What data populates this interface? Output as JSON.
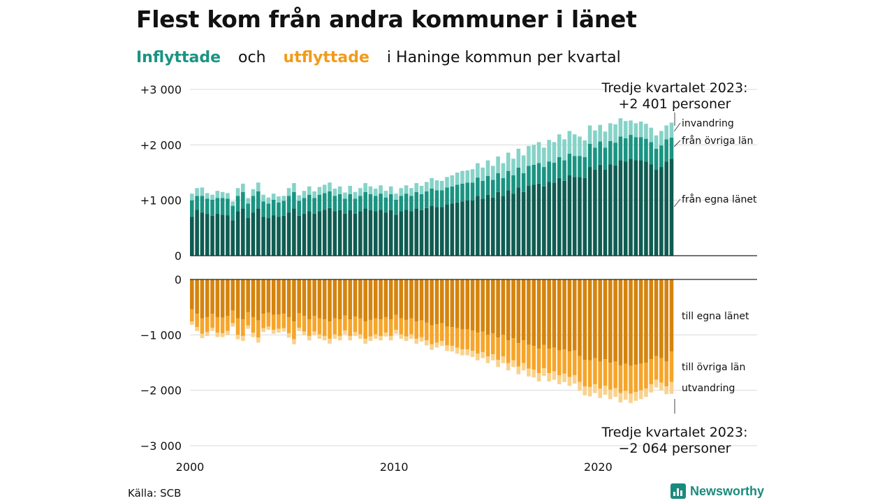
{
  "title": "Flest kom från andra kommuner i länet",
  "subtitle": {
    "inflow": "Inflyttade",
    "and": "och",
    "outflow": "utflyttade",
    "rest": "i Haninge  kommun  per  kvartal"
  },
  "source": "Källa: SCB",
  "brand": "Newsworthy",
  "colors": {
    "in_egna": "#0f5c52",
    "in_ovriga": "#1a9482",
    "in_invandring": "#86d3c8",
    "out_egna": "#d4840e",
    "out_ovriga": "#f6a52a",
    "out_utvandring": "#f9d28e",
    "grid": "#d9d9d9"
  },
  "chart_data": {
    "type": "bar",
    "stacked": true,
    "x_start": "2000 Q1",
    "x_end": "2023 Q3",
    "periods": 95,
    "x_ticks": [
      "2000",
      "2010",
      "2020"
    ],
    "y_ticks_top": [
      "+3 000",
      "+2 000",
      "+1 000",
      "0"
    ],
    "y_ticks_bottom": [
      "0",
      "−1 000",
      "−2 000",
      "−3 000"
    ],
    "ylim_top": [
      0,
      3000
    ],
    "ylim_bottom": [
      -3000,
      0
    ],
    "inflow_series_labels": [
      "invandring",
      "från övriga län",
      "från egna länet"
    ],
    "outflow_series_labels": [
      "till egna länet",
      "till övriga län",
      "utvandring"
    ],
    "annotation_top": [
      "Tredje kvartalet 2023:",
      "+2 401 personer"
    ],
    "annotation_bottom": [
      "Tredje kvartalet 2023:",
      "−2 064 personer"
    ],
    "inflow": {
      "egna": [
        700,
        830,
        780,
        750,
        720,
        760,
        740,
        730,
        640,
        800,
        850,
        680,
        780,
        850,
        700,
        680,
        730,
        700,
        720,
        780,
        850,
        720,
        760,
        800,
        760,
        800,
        830,
        860,
        800,
        820,
        760,
        820,
        760,
        800,
        850,
        820,
        800,
        830,
        780,
        820,
        740,
        800,
        830,
        800,
        850,
        820,
        860,
        900,
        880,
        880,
        920,
        940,
        960,
        980,
        1000,
        1000,
        1080,
        1030,
        1100,
        1050,
        1150,
        1080,
        1180,
        1120,
        1230,
        1150,
        1260,
        1280,
        1300,
        1250,
        1330,
        1320,
        1400,
        1350,
        1450,
        1420,
        1420,
        1400,
        1600,
        1550,
        1640,
        1550,
        1650,
        1630,
        1720,
        1700,
        1750,
        1720,
        1720,
        1700,
        1650,
        1550,
        1600,
        1700,
        1750
      ],
      "ovriga": [
        300,
        250,
        300,
        280,
        290,
        280,
        300,
        300,
        260,
        280,
        300,
        260,
        300,
        310,
        280,
        260,
        280,
        260,
        270,
        300,
        300,
        270,
        280,
        300,
        280,
        300,
        300,
        300,
        280,
        290,
        270,
        290,
        270,
        280,
        300,
        290,
        280,
        290,
        270,
        290,
        270,
        280,
        290,
        280,
        300,
        290,
        300,
        310,
        300,
        300,
        310,
        310,
        320,
        320,
        320,
        320,
        330,
        320,
        340,
        320,
        340,
        320,
        350,
        330,
        360,
        340,
        360,
        360,
        370,
        350,
        370,
        360,
        380,
        370,
        390,
        380,
        380,
        380,
        420,
        400,
        420,
        400,
        420,
        410,
        430,
        420,
        430,
        420,
        420,
        410,
        400,
        380,
        390,
        400,
        380
      ],
      "invandring": [
        120,
        140,
        150,
        100,
        90,
        130,
        110,
        100,
        80,
        140,
        150,
        100,
        120,
        160,
        120,
        110,
        110,
        110,
        90,
        140,
        160,
        100,
        130,
        150,
        120,
        140,
        150,
        160,
        130,
        140,
        110,
        150,
        120,
        140,
        160,
        140,
        130,
        150,
        120,
        140,
        110,
        140,
        150,
        140,
        160,
        150,
        170,
        190,
        180,
        170,
        190,
        200,
        220,
        230,
        220,
        240,
        260,
        240,
        280,
        250,
        300,
        270,
        330,
        300,
        340,
        320,
        360,
        360,
        380,
        350,
        390,
        370,
        410,
        380,
        410,
        390,
        350,
        300,
        330,
        310,
        300,
        290,
        320,
        330,
        330,
        310,
        260,
        250,
        280,
        270,
        260,
        240,
        260,
        250,
        271
      ]
    },
    "outflow": {
      "egna": [
        540,
        620,
        700,
        680,
        620,
        680,
        690,
        660,
        560,
        700,
        720,
        590,
        680,
        740,
        620,
        600,
        640,
        630,
        620,
        680,
        760,
        610,
        660,
        720,
        660,
        700,
        720,
        760,
        700,
        720,
        650,
        720,
        670,
        700,
        760,
        730,
        700,
        720,
        680,
        720,
        640,
        700,
        730,
        700,
        760,
        740,
        780,
        830,
        810,
        790,
        850,
        860,
        880,
        900,
        900,
        920,
        960,
        940,
        1000,
        970,
        1050,
        1000,
        1100,
        1060,
        1150,
        1100,
        1180,
        1200,
        1250,
        1180,
        1250,
        1230,
        1280,
        1260,
        1300,
        1280,
        1380,
        1450,
        1460,
        1420,
        1480,
        1440,
        1500,
        1480,
        1550,
        1520,
        1560,
        1540,
        1520,
        1500,
        1440,
        1380,
        1420,
        1480,
        1300
      ],
      "ovriga": [
        220,
        240,
        280,
        270,
        250,
        280,
        280,
        270,
        230,
        300,
        300,
        240,
        280,
        310,
        260,
        250,
        270,
        260,
        260,
        290,
        320,
        260,
        280,
        300,
        280,
        290,
        300,
        310,
        290,
        300,
        270,
        300,
        280,
        290,
        310,
        300,
        290,
        300,
        280,
        300,
        270,
        290,
        300,
        290,
        310,
        300,
        320,
        340,
        330,
        320,
        340,
        340,
        350,
        360,
        360,
        370,
        380,
        370,
        390,
        380,
        400,
        390,
        410,
        400,
        420,
        410,
        430,
        430,
        440,
        420,
        440,
        430,
        450,
        440,
        460,
        450,
        470,
        480,
        480,
        470,
        490,
        480,
        490,
        480,
        500,
        490,
        500,
        490,
        480,
        470,
        450,
        430,
        440,
        450,
        550
      ],
      "utvandring": [
        60,
        70,
        80,
        70,
        60,
        80,
        70,
        70,
        60,
        80,
        90,
        60,
        80,
        90,
        70,
        60,
        70,
        70,
        60,
        80,
        90,
        60,
        70,
        80,
        70,
        80,
        80,
        90,
        80,
        80,
        70,
        80,
        70,
        80,
        90,
        80,
        80,
        80,
        70,
        80,
        70,
        80,
        80,
        80,
        90,
        80,
        90,
        100,
        90,
        90,
        100,
        100,
        110,
        110,
        110,
        110,
        120,
        110,
        120,
        110,
        130,
        120,
        130,
        120,
        140,
        130,
        140,
        140,
        150,
        140,
        150,
        150,
        160,
        150,
        160,
        150,
        160,
        160,
        170,
        160,
        170,
        160,
        170,
        160,
        170,
        160,
        170,
        160,
        160,
        150,
        150,
        140,
        140,
        140,
        214
      ]
    }
  }
}
